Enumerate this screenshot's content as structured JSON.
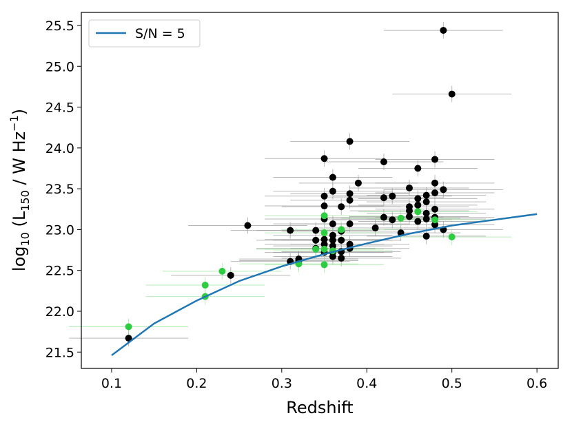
{
  "chart_data": {
    "type": "scatter",
    "title": "",
    "xlabel": "Redshift",
    "ylabel_main": "log",
    "ylabel_sub": "10",
    "ylabel_rest1": " (L",
    "ylabel_sub2": "150",
    "ylabel_rest2": " / W Hz",
    "ylabel_sup": "−1",
    "ylabel_close": ")",
    "xlim": [
      0.0644,
      0.625
    ],
    "ylim": [
      21.3,
      25.66
    ],
    "xticks": [
      0.1,
      0.2,
      0.3,
      0.4,
      0.5,
      0.6
    ],
    "xtick_labels": [
      "0.1",
      "0.2",
      "0.3",
      "0.4",
      "0.5",
      "0.6"
    ],
    "yticks": [
      21.5,
      22.0,
      22.5,
      23.0,
      23.5,
      24.0,
      24.5,
      25.0,
      25.5
    ],
    "ytick_labels": [
      "21.5",
      "22.0",
      "22.5",
      "23.0",
      "23.5",
      "24.0",
      "24.5",
      "25.0",
      "25.5"
    ],
    "grid": false,
    "legend": {
      "placement": "top-left",
      "entries": [
        "S/N = 5"
      ]
    },
    "colors": {
      "curve": "#1f77b4",
      "black": "#000000",
      "green": "#2ecc40",
      "errbar": "#999999",
      "green_err": "#9be69b"
    },
    "xerr_typical": 0.07,
    "yerr_typical": 0.1,
    "curve": {
      "name": "S/N = 5",
      "x": [
        0.1,
        0.15,
        0.2,
        0.25,
        0.3,
        0.35,
        0.4,
        0.45,
        0.5,
        0.55,
        0.6
      ],
      "y": [
        21.46,
        21.85,
        22.13,
        22.37,
        22.55,
        22.7,
        22.83,
        22.95,
        23.05,
        23.12,
        23.19
      ]
    },
    "series_black": [
      [
        0.12,
        21.67
      ],
      [
        0.24,
        22.44
      ],
      [
        0.26,
        23.05
      ],
      [
        0.31,
        22.99
      ],
      [
        0.31,
        22.61
      ],
      [
        0.32,
        22.64
      ],
      [
        0.32,
        22.62
      ],
      [
        0.34,
        22.99
      ],
      [
        0.34,
        22.87
      ],
      [
        0.34,
        22.77
      ],
      [
        0.35,
        23.87
      ],
      [
        0.35,
        23.41
      ],
      [
        0.35,
        23.29
      ],
      [
        0.35,
        23.13
      ],
      [
        0.35,
        22.88
      ],
      [
        0.35,
        22.82
      ],
      [
        0.35,
        22.72
      ],
      [
        0.36,
        23.64
      ],
      [
        0.36,
        23.47
      ],
      [
        0.36,
        23.07
      ],
      [
        0.36,
        22.93
      ],
      [
        0.36,
        22.87
      ],
      [
        0.36,
        22.8
      ],
      [
        0.36,
        22.72
      ],
      [
        0.36,
        22.67
      ],
      [
        0.37,
        23.28
      ],
      [
        0.37,
        22.98
      ],
      [
        0.37,
        22.87
      ],
      [
        0.37,
        22.73
      ],
      [
        0.37,
        22.65
      ],
      [
        0.38,
        24.08
      ],
      [
        0.38,
        23.44
      ],
      [
        0.38,
        23.36
      ],
      [
        0.38,
        23.07
      ],
      [
        0.38,
        22.82
      ],
      [
        0.38,
        22.77
      ],
      [
        0.39,
        23.57
      ],
      [
        0.41,
        23.02
      ],
      [
        0.42,
        23.83
      ],
      [
        0.42,
        23.39
      ],
      [
        0.42,
        23.15
      ],
      [
        0.43,
        23.41
      ],
      [
        0.43,
        23.12
      ],
      [
        0.44,
        22.96
      ],
      [
        0.45,
        23.51
      ],
      [
        0.45,
        23.28
      ],
      [
        0.45,
        23.23
      ],
      [
        0.45,
        23.16
      ],
      [
        0.46,
        23.75
      ],
      [
        0.46,
        23.38
      ],
      [
        0.46,
        23.3
      ],
      [
        0.46,
        23.1
      ],
      [
        0.47,
        23.42
      ],
      [
        0.47,
        23.34
      ],
      [
        0.47,
        23.2
      ],
      [
        0.47,
        23.13
      ],
      [
        0.47,
        22.92
      ],
      [
        0.48,
        23.86
      ],
      [
        0.48,
        23.57
      ],
      [
        0.48,
        23.45
      ],
      [
        0.48,
        23.25
      ],
      [
        0.48,
        23.15
      ],
      [
        0.48,
        23.06
      ],
      [
        0.49,
        23.49
      ],
      [
        0.49,
        23.0
      ],
      [
        0.49,
        25.44
      ],
      [
        0.5,
        24.66
      ]
    ],
    "series_green": [
      [
        0.12,
        21.81
      ],
      [
        0.21,
        22.32
      ],
      [
        0.21,
        22.18
      ],
      [
        0.23,
        22.49
      ],
      [
        0.32,
        22.58
      ],
      [
        0.35,
        23.17
      ],
      [
        0.35,
        22.96
      ],
      [
        0.35,
        22.76
      ],
      [
        0.35,
        22.57
      ],
      [
        0.34,
        22.76
      ],
      [
        0.36,
        22.74
      ],
      [
        0.37,
        23.0
      ],
      [
        0.44,
        23.14
      ],
      [
        0.46,
        23.22
      ],
      [
        0.48,
        23.12
      ],
      [
        0.5,
        22.91
      ]
    ]
  }
}
